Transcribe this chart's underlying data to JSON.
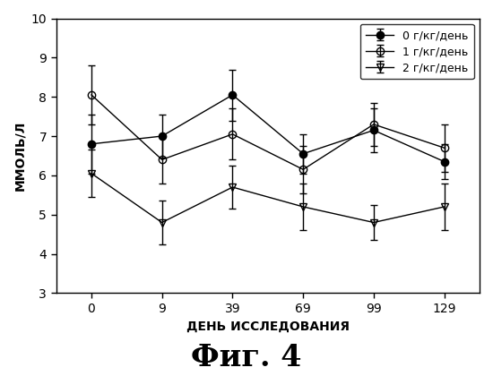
{
  "x_positions": [
    0,
    1,
    2,
    3,
    4,
    5
  ],
  "x_labels": [
    "0",
    "9",
    "39",
    "69",
    "99",
    "129"
  ],
  "series": [
    {
      "label": "0 г/кг/день",
      "y": [
        6.8,
        7.0,
        8.05,
        6.55,
        7.15,
        6.35
      ],
      "yerr": [
        0.75,
        0.55,
        0.65,
        0.5,
        0.55,
        0.45
      ],
      "marker": "o",
      "fillstyle": "full",
      "color": "#000000",
      "markersize": 6
    },
    {
      "label": "1 г/кг/день",
      "y": [
        8.05,
        6.4,
        7.05,
        6.15,
        7.3,
        6.7
      ],
      "yerr": [
        0.75,
        0.6,
        0.65,
        0.6,
        0.55,
        0.6
      ],
      "marker": "o",
      "fillstyle": "none",
      "color": "#000000",
      "markersize": 6
    },
    {
      "label": "2 г/кг/день",
      "y": [
        6.05,
        4.8,
        5.7,
        5.2,
        4.8,
        5.2
      ],
      "yerr": [
        0.6,
        0.55,
        0.55,
        0.6,
        0.45,
        0.6
      ],
      "marker": "v",
      "fillstyle": "none",
      "color": "#000000",
      "markersize": 6
    }
  ],
  "xlabel": "ДЕНЬ ИССЛЕДОВАНИЯ",
  "ylabel": "ММОЛЬ/Л",
  "ylim": [
    3,
    10
  ],
  "yticks": [
    3,
    4,
    5,
    6,
    7,
    8,
    9,
    10
  ],
  "title": "Фиг. 4",
  "title_fontsize": 24,
  "axis_label_fontsize": 10,
  "legend_fontsize": 9,
  "tick_fontsize": 10,
  "background_color": "#ffffff",
  "linewidth": 1.0,
  "capsize": 3,
  "elinewidth": 1.0,
  "capthick": 1.0
}
